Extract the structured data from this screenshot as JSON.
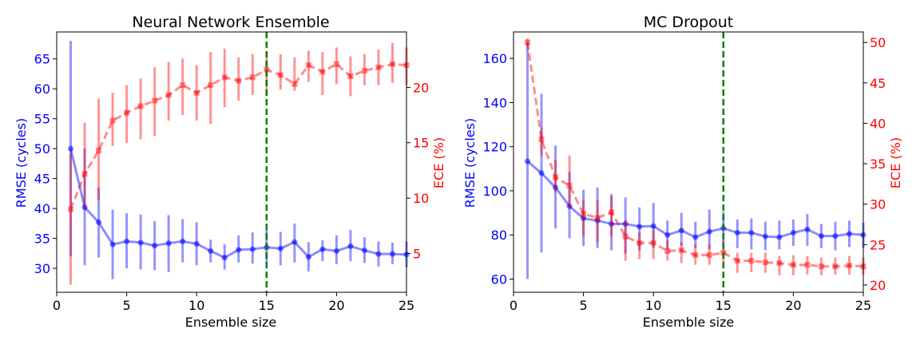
{
  "colors": {
    "rmse": "#0000ff",
    "ece": "#ff0000",
    "guide": "#008000",
    "axes": "#000000"
  },
  "charts": [
    {
      "title": "Neural Network Ensemble",
      "xlabel": "Ensemble size",
      "ylabel_left": "RMSE (cycles)",
      "ylabel_right": "ECE (%)",
      "x_ticks": [
        "0",
        "5",
        "10",
        "15",
        "20",
        "25"
      ],
      "y_left_ticks": [
        "30",
        "35",
        "40",
        "45",
        "50",
        "55",
        "60",
        "65"
      ],
      "y_right_ticks": [
        "5",
        "10",
        "15",
        "20"
      ]
    },
    {
      "title": "MC Dropout",
      "xlabel": "Ensemble size",
      "ylabel_left": "RMSE (cycles)",
      "ylabel_right": "ECE (%)",
      "x_ticks": [
        "0",
        "5",
        "10",
        "15",
        "20",
        "25"
      ],
      "y_left_ticks": [
        "60",
        "80",
        "100",
        "120",
        "140",
        "160"
      ],
      "y_right_ticks": [
        "20",
        "25",
        "30",
        "35",
        "40",
        "45",
        "50"
      ]
    }
  ],
  "chart_data": [
    {
      "type": "line",
      "title": "Neural Network Ensemble",
      "xlabel": "Ensemble size",
      "ylabel_left": "RMSE (cycles)",
      "ylabel_right": "ECE (%)",
      "xlim": [
        0,
        25
      ],
      "ylim_left": [
        26,
        69.5
      ],
      "ylim_right": [
        1.5,
        25
      ],
      "vertical_line_x": 15,
      "x": [
        1,
        2,
        3,
        4,
        5,
        6,
        7,
        8,
        9,
        10,
        11,
        12,
        13,
        14,
        15,
        16,
        17,
        18,
        19,
        20,
        21,
        22,
        23,
        24,
        25
      ],
      "series": [
        {
          "name": "RMSE",
          "axis": "left",
          "style": "solid, circle markers",
          "values": [
            50.0,
            40.2,
            37.7,
            34.0,
            34.5,
            34.3,
            33.8,
            34.2,
            34.5,
            34.1,
            32.9,
            31.8,
            33.1,
            33.2,
            33.5,
            33.3,
            34.4,
            31.9,
            33.2,
            32.9,
            33.7,
            33.0,
            32.4,
            32.4,
            32.3
          ],
          "error_low": [
            32.0,
            30.5,
            31.8,
            28.2,
            30.0,
            29.8,
            29.7,
            29.4,
            31.0,
            30.5,
            31.0,
            29.8,
            31.0,
            30.8,
            30.8,
            30.5,
            31.0,
            29.5,
            31.2,
            30.7,
            31.2,
            30.9,
            30.3,
            30.7,
            30.2
          ],
          "error_high": [
            68.0,
            50.0,
            43.5,
            39.8,
            39.2,
            39.0,
            37.9,
            38.9,
            38.2,
            37.7,
            34.8,
            34.0,
            35.5,
            36.0,
            36.4,
            36.1,
            37.5,
            34.4,
            34.7,
            35.5,
            36.4,
            35.2,
            34.5,
            34.3,
            34.5
          ]
        },
        {
          "name": "ECE",
          "axis": "right",
          "style": "dashed, square markers",
          "values": [
            9.0,
            12.2,
            14.3,
            17.0,
            17.7,
            18.3,
            18.8,
            19.3,
            20.2,
            19.5,
            20.2,
            20.9,
            20.6,
            20.9,
            21.6,
            21.1,
            20.3,
            22.0,
            21.4,
            22.1,
            21.0,
            21.5,
            21.8,
            22.1,
            22.0
          ],
          "error_low": [
            2.2,
            9.2,
            9.8,
            14.7,
            15.0,
            15.3,
            15.6,
            17.0,
            17.5,
            17.0,
            16.7,
            18.2,
            18.8,
            19.3,
            19.3,
            19.8,
            19.7,
            20.5,
            19.3,
            20.3,
            19.2,
            20.2,
            20.2,
            20.4,
            20.2
          ],
          "error_high": [
            14.0,
            16.8,
            19.0,
            19.5,
            20.2,
            20.8,
            21.8,
            22.3,
            22.6,
            22.0,
            23.2,
            23.5,
            22.7,
            23.0,
            23.2,
            23.0,
            22.7,
            23.3,
            23.2,
            23.6,
            22.8,
            23.0,
            23.4,
            24.0,
            23.6
          ]
        }
      ]
    },
    {
      "type": "line",
      "title": "MC Dropout",
      "xlabel": "Ensemble size",
      "ylabel_left": "RMSE (cycles)",
      "ylabel_right": "ECE (%)",
      "xlim": [
        0,
        25
      ],
      "ylim_left": [
        54,
        172
      ],
      "ylim_right": [
        19.1,
        51.3
      ],
      "vertical_line_x": 15,
      "x": [
        1,
        2,
        3,
        4,
        5,
        6,
        7,
        8,
        9,
        10,
        11,
        12,
        13,
        14,
        15,
        16,
        17,
        18,
        19,
        20,
        21,
        22,
        23,
        24,
        25
      ],
      "series": [
        {
          "name": "RMSE",
          "axis": "left",
          "style": "solid, circle markers",
          "values": [
            113.4,
            108.0,
            101.5,
            93.0,
            87.5,
            86.5,
            85.0,
            85.0,
            83.8,
            84.0,
            80.0,
            82.0,
            79.0,
            81.5,
            83.0,
            81.0,
            81.0,
            79.3,
            79.0,
            81.0,
            82.5,
            79.5,
            79.5,
            80.5,
            80.0
          ],
          "error_low": [
            60.0,
            72.0,
            83.0,
            78.5,
            75.0,
            74.0,
            73.0,
            71.5,
            73.0,
            74.0,
            73.5,
            75.0,
            74.0,
            73.5,
            76.0,
            74.0,
            73.5,
            73.0,
            73.5,
            75.0,
            75.0,
            74.0,
            73.0,
            74.5,
            74.0
          ],
          "error_high": [
            167.0,
            144.0,
            120.5,
            108.5,
            100.5,
            101.5,
            98.5,
            97.0,
            92.5,
            94.5,
            86.5,
            90.0,
            86.0,
            91.5,
            90.5,
            87.0,
            87.5,
            86.0,
            86.5,
            87.0,
            89.5,
            85.0,
            86.0,
            86.5,
            85.5
          ]
        },
        {
          "name": "ECE",
          "axis": "right",
          "style": "dashed, square markers",
          "values": [
            50.0,
            38.0,
            33.3,
            32.3,
            28.8,
            28.3,
            29.0,
            26.0,
            25.2,
            25.2,
            24.2,
            24.3,
            23.7,
            23.7,
            24.0,
            23.0,
            23.0,
            22.8,
            22.7,
            22.5,
            22.5,
            22.3,
            22.3,
            22.4,
            22.3
          ],
          "error_low": [
            49.5,
            36.0,
            31.5,
            29.5,
            26.0,
            25.3,
            26.0,
            23.0,
            23.2,
            23.2,
            23.0,
            22.7,
            22.5,
            22.5,
            22.8,
            21.5,
            21.6,
            21.5,
            21.2,
            21.2,
            21.3,
            21.2,
            21.3,
            21.3,
            21.3
          ],
          "error_high": [
            50.5,
            39.5,
            35.5,
            36.0,
            30.5,
            30.5,
            31.0,
            28.0,
            26.5,
            26.8,
            25.5,
            25.3,
            25.0,
            25.0,
            25.5,
            24.0,
            24.0,
            24.0,
            23.6,
            23.7,
            23.6,
            23.4,
            23.4,
            23.6,
            23.4
          ]
        }
      ]
    }
  ]
}
